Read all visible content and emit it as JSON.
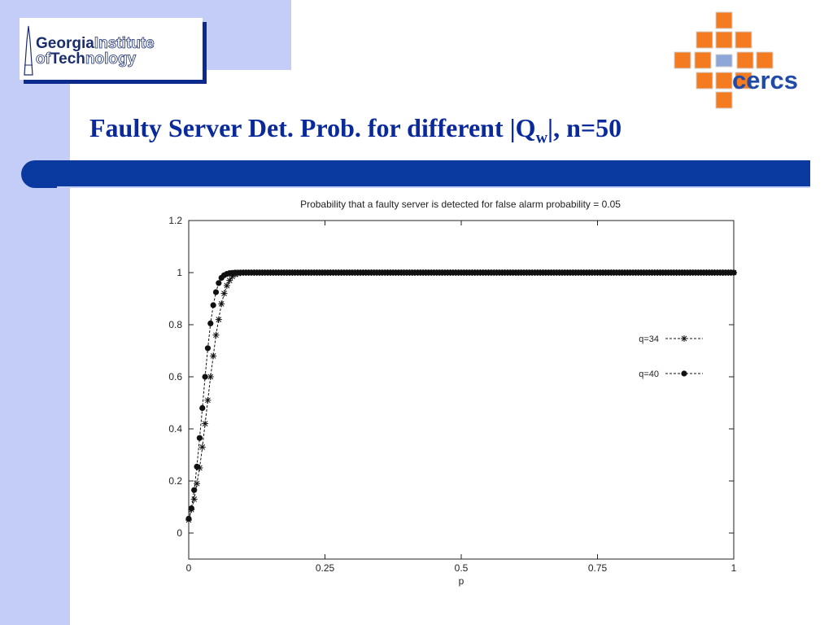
{
  "slide": {
    "title_main": "Faulty Server Det. Prob. for different |Q",
    "title_sub": "w",
    "title_end": "|, n=50",
    "colors": {
      "title": "#0a2a9c",
      "band": "#c3cdf7",
      "bar": "#0a3aa0",
      "cercs_orange": "#f47b20",
      "cercs_blue": "#1f4aa8"
    }
  },
  "logo_gt": {
    "line1_bold": "Georgia",
    "line1_outline": "Institute",
    "line2_outline": "of",
    "line2_bold": "Tech",
    "line2_outline2": "nology"
  },
  "logo_cercs": {
    "text": "cercs"
  },
  "chart_data": {
    "type": "line",
    "title": "Probability that a faulty server is detected for false alarm probability = 0.05",
    "xlabel": "p",
    "ylabel": "",
    "xlim": [
      0,
      1
    ],
    "ylim": [
      -0.1,
      1.2
    ],
    "xticks": [
      "0",
      "0.25",
      "0.5",
      "0.75",
      "1"
    ],
    "yticks": [
      "0",
      "0.2",
      "0.4",
      "0.6",
      "0.8",
      "1",
      "1.2"
    ],
    "legend_position": "right",
    "series": [
      {
        "name": "q=34",
        "marker": "star",
        "x": [
          0,
          0.005,
          0.01,
          0.015,
          0.02,
          0.025,
          0.03,
          0.035,
          0.04,
          0.045,
          0.05,
          0.055,
          0.06,
          0.065,
          0.07,
          0.075,
          0.08,
          0.085,
          0.09,
          0.095,
          0.1
        ],
        "y": [
          0.05,
          0.09,
          0.13,
          0.19,
          0.25,
          0.33,
          0.42,
          0.51,
          0.6,
          0.68,
          0.76,
          0.82,
          0.88,
          0.92,
          0.95,
          0.97,
          0.985,
          0.993,
          0.997,
          0.999,
          1.0
        ]
      },
      {
        "name": "q=40",
        "marker": "dot",
        "x": [
          0,
          0.005,
          0.01,
          0.015,
          0.02,
          0.025,
          0.03,
          0.035,
          0.04,
          0.045,
          0.05,
          0.055,
          0.06,
          0.065,
          0.07,
          0.075,
          0.08,
          0.085,
          0.09,
          0.095,
          0.1
        ],
        "y": [
          0.055,
          0.095,
          0.165,
          0.255,
          0.365,
          0.48,
          0.6,
          0.71,
          0.805,
          0.875,
          0.925,
          0.96,
          0.98,
          0.99,
          0.995,
          0.998,
          0.999,
          1.0,
          1.0,
          1.0,
          1.0
        ]
      }
    ]
  }
}
